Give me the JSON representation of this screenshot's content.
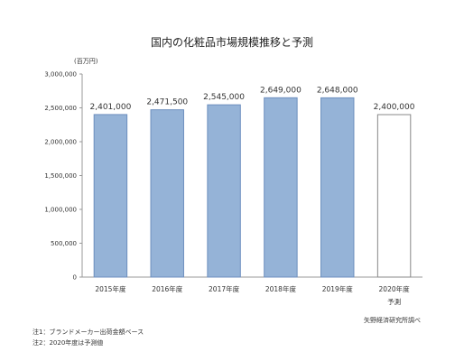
{
  "chart_data": {
    "type": "bar",
    "title": "国内の化粧品市場規模推移と予測",
    "unit_label": "(百万円)",
    "categories": [
      "2015年度",
      "2016年度",
      "2017年度",
      "2018年度",
      "2019年度",
      "2020年度"
    ],
    "category_sublabels": [
      "",
      "",
      "",
      "",
      "",
      "予測"
    ],
    "values": [
      2401000,
      2471500,
      2545000,
      2649000,
      2648000,
      2400000
    ],
    "value_labels": [
      "2,401,000",
      "2,471,500",
      "2,545,000",
      "2,649,000",
      "2,648,000",
      "2,400,000"
    ],
    "forecast": [
      false,
      false,
      false,
      false,
      false,
      true
    ],
    "ylim": [
      0,
      3000000
    ],
    "yticks": [
      0,
      500000,
      1000000,
      1500000,
      2000000,
      2500000,
      3000000
    ],
    "ytick_labels": [
      "0",
      "500,000",
      "1,000,000",
      "1,500,000",
      "2,000,000",
      "2,500,000",
      "3,000,000"
    ],
    "grid": false,
    "colors": {
      "bar_fill": "#95b3d7",
      "bar_stroke": "#6d8fbf",
      "forecast_fill": "#ffffff",
      "forecast_stroke": "#888888",
      "axis": "#999999"
    }
  },
  "notes": [
    "注1：ブランドメーカー出荷金額ベース",
    "注2：2020年度は予測値"
  ],
  "source": "矢野経済研究所調べ"
}
